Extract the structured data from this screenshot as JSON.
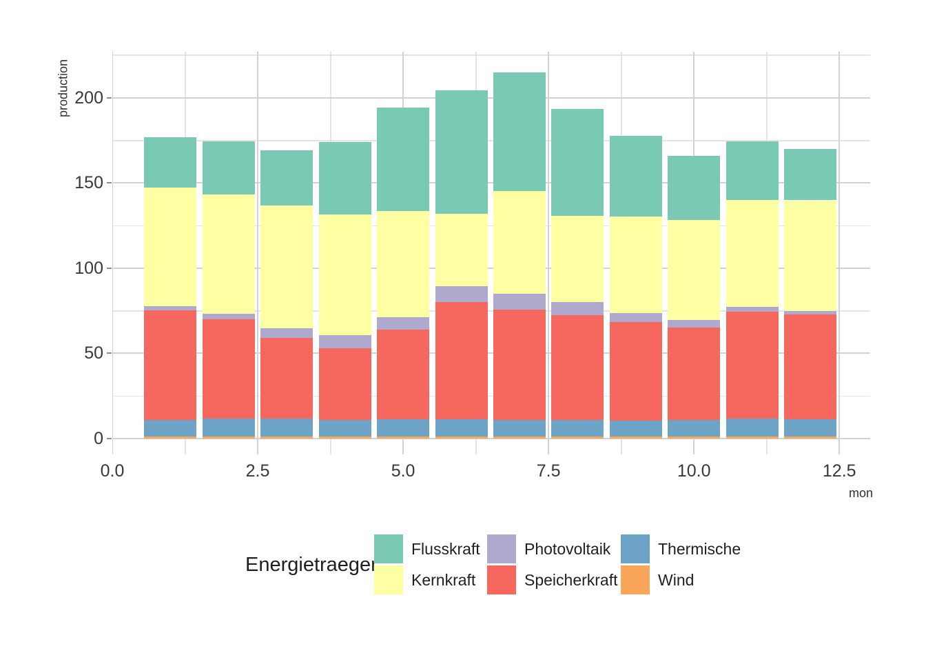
{
  "figure": {
    "y_axis": {
      "title": "production",
      "tick_values": [
        0,
        50,
        100,
        150,
        200
      ],
      "tick_labels": [
        "0",
        "50",
        "100",
        "150",
        "200"
      ],
      "minor_tick_values": [
        25,
        75,
        125,
        175,
        225
      ]
    },
    "x_axis": {
      "title": "mon",
      "tick_values": [
        0,
        2.5,
        5,
        7.5,
        10,
        12.5
      ],
      "tick_labels": [
        "0.0",
        "2.5",
        "5.0",
        "7.5",
        "10.0",
        "12.5"
      ],
      "minor_tick_values": [
        1.25,
        3.75,
        6.25,
        8.75,
        11.25
      ]
    },
    "legend": {
      "title": "Energietraeger",
      "entries": [
        {
          "label": "Flusskraft",
          "color": "#79C9B4"
        },
        {
          "label": "Kernkraft",
          "color": "#FEFFA3"
        },
        {
          "label": "Photovoltaik",
          "color": "#AFA9CE"
        },
        {
          "label": "Speicherkraft",
          "color": "#F6685E"
        },
        {
          "label": "Thermische",
          "color": "#6EA3C8"
        },
        {
          "label": "Wind",
          "color": "#F9A65A"
        }
      ]
    },
    "colors": {
      "background": "#ffffff",
      "grid_major": "#d2d2d2",
      "grid_minor": "#e4e4e4",
      "tick_text": "#383838",
      "axis_title_text": "#303030"
    }
  },
  "chart_data": {
    "type": "bar",
    "stacked": true,
    "title": "",
    "xlabel": "mon",
    "ylabel": "production",
    "x": [
      1,
      2,
      3,
      4,
      5,
      6,
      7,
      8,
      9,
      10,
      11,
      12
    ],
    "bar_width": 0.9,
    "xlim": [
      0,
      13.03
    ],
    "ylim": [
      -9.3,
      227
    ],
    "grid": true,
    "legend_position": "bottom",
    "stack_order_bottom_to_top": [
      "Wind",
      "Thermische",
      "Speicherkraft",
      "Photovoltaik",
      "Kernkraft",
      "Flusskraft"
    ],
    "series": [
      {
        "name": "Flusskraft",
        "color": "#79C9B4",
        "values": [
          29.8,
          30.8,
          32.4,
          42.4,
          60.7,
          72.4,
          69.8,
          62.7,
          47.4,
          37.5,
          34.1,
          30.3
        ]
      },
      {
        "name": "Kernkraft",
        "color": "#FEFFA3",
        "values": [
          69.4,
          70.1,
          72.1,
          70.8,
          62.3,
          42.5,
          60.3,
          50.3,
          56.5,
          58.5,
          63.0,
          64.8
        ]
      },
      {
        "name": "Photovoltaik",
        "color": "#AFA9CE",
        "values": [
          2.6,
          3.3,
          5.6,
          7.7,
          7.4,
          9.2,
          9.1,
          7.7,
          5.5,
          4.5,
          2.7,
          2.0
        ]
      },
      {
        "name": "Speicherkraft",
        "color": "#F6685E",
        "values": [
          64.1,
          58.4,
          47.5,
          42.1,
          52.7,
          69.1,
          64.9,
          61.8,
          57.8,
          54.4,
          62.8,
          61.7
        ]
      },
      {
        "name": "Thermische",
        "color": "#6EA3C8",
        "values": [
          9.8,
          10.4,
          10.5,
          9.8,
          10.0,
          10.0,
          9.6,
          9.6,
          9.2,
          9.6,
          10.4,
          10.1
        ]
      },
      {
        "name": "Wind",
        "color": "#F9A65A",
        "values": [
          1.2,
          1.2,
          1.2,
          1.2,
          1.2,
          1.2,
          1.2,
          1.2,
          1.2,
          1.2,
          1.2,
          1.2
        ]
      }
    ],
    "totals": [
      176.9,
      174.2,
      169.3,
      174.0,
      194.3,
      204.4,
      214.9,
      193.3,
      177.6,
      165.7,
      174.2,
      170.1
    ]
  }
}
